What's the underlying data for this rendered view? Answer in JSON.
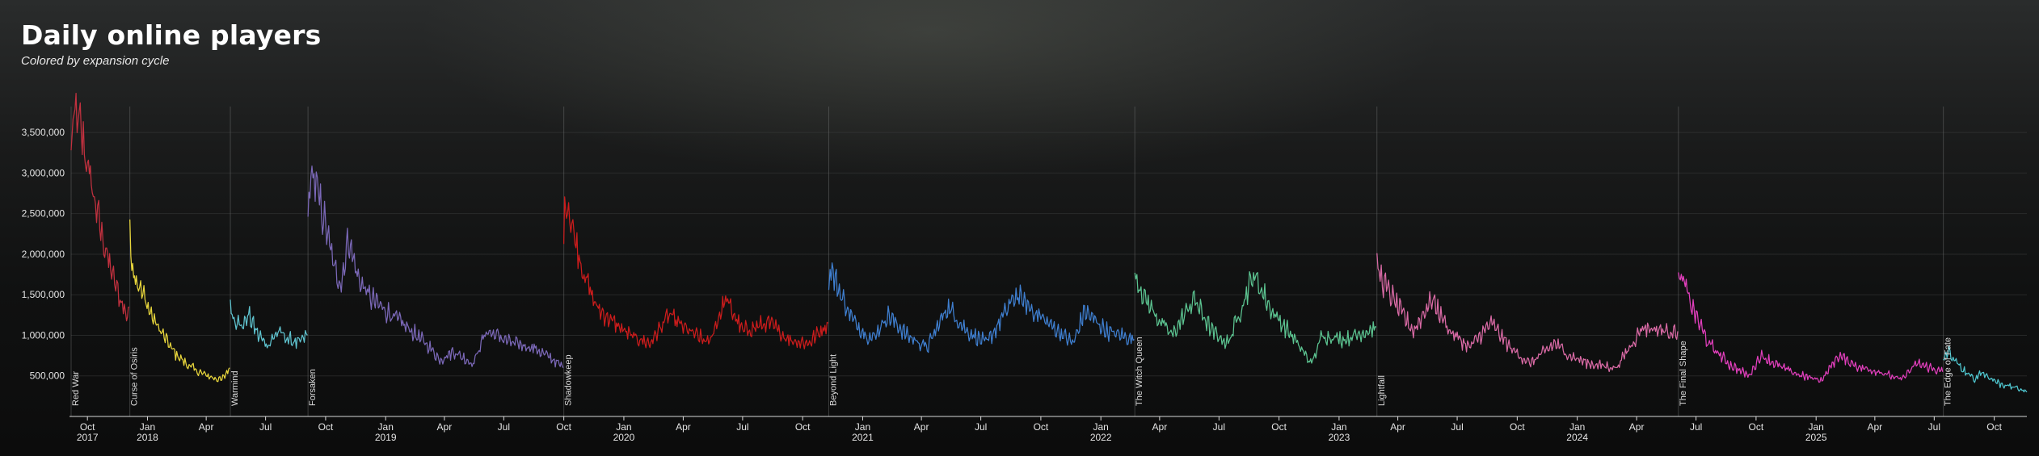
{
  "header": {
    "title": "Daily online players",
    "subtitle": "Colored by expansion cycle"
  },
  "chart_data": {
    "type": "line",
    "title": "Daily online players",
    "subtitle": "Colored by expansion cycle",
    "xlabel": "",
    "ylabel": "",
    "ylim": [
      0,
      3800000
    ],
    "xlim": [
      "2017-09-06",
      "2025-11-20"
    ],
    "y_ticks": [
      500000,
      1000000,
      1500000,
      2000000,
      2500000,
      3000000,
      3500000
    ],
    "y_tick_labels": [
      "500,000",
      "1,000,000",
      "1,500,000",
      "2,000,000",
      "2,500,000",
      "3,000,000",
      "3,500,000"
    ],
    "x_ticks": [
      {
        "date": "2017-10-01",
        "month": "Oct",
        "year": "2017"
      },
      {
        "date": "2018-01-01",
        "month": "Jan",
        "year": "2018"
      },
      {
        "date": "2018-04-01",
        "month": "Apr",
        "year": ""
      },
      {
        "date": "2018-07-01",
        "month": "Jul",
        "year": ""
      },
      {
        "date": "2018-10-01",
        "month": "Oct",
        "year": ""
      },
      {
        "date": "2019-01-01",
        "month": "Jan",
        "year": "2019"
      },
      {
        "date": "2019-04-01",
        "month": "Apr",
        "year": ""
      },
      {
        "date": "2019-07-01",
        "month": "Jul",
        "year": ""
      },
      {
        "date": "2019-10-01",
        "month": "Oct",
        "year": ""
      },
      {
        "date": "2020-01-01",
        "month": "Jan",
        "year": "2020"
      },
      {
        "date": "2020-04-01",
        "month": "Apr",
        "year": ""
      },
      {
        "date": "2020-07-01",
        "month": "Jul",
        "year": ""
      },
      {
        "date": "2020-10-01",
        "month": "Oct",
        "year": ""
      },
      {
        "date": "2021-01-01",
        "month": "Jan",
        "year": "2021"
      },
      {
        "date": "2021-04-01",
        "month": "Apr",
        "year": ""
      },
      {
        "date": "2021-07-01",
        "month": "Jul",
        "year": ""
      },
      {
        "date": "2021-10-01",
        "month": "Oct",
        "year": ""
      },
      {
        "date": "2022-01-01",
        "month": "Jan",
        "year": "2022"
      },
      {
        "date": "2022-04-01",
        "month": "Apr",
        "year": ""
      },
      {
        "date": "2022-07-01",
        "month": "Jul",
        "year": ""
      },
      {
        "date": "2022-10-01",
        "month": "Oct",
        "year": ""
      },
      {
        "date": "2023-01-01",
        "month": "Jan",
        "year": "2023"
      },
      {
        "date": "2023-04-01",
        "month": "Apr",
        "year": ""
      },
      {
        "date": "2023-07-01",
        "month": "Jul",
        "year": ""
      },
      {
        "date": "2023-10-01",
        "month": "Oct",
        "year": ""
      },
      {
        "date": "2024-01-01",
        "month": "Jan",
        "year": "2024"
      },
      {
        "date": "2024-04-01",
        "month": "Apr",
        "year": ""
      },
      {
        "date": "2024-07-01",
        "month": "Jul",
        "year": ""
      },
      {
        "date": "2024-10-01",
        "month": "Oct",
        "year": ""
      },
      {
        "date": "2025-01-01",
        "month": "Jan",
        "year": "2025"
      },
      {
        "date": "2025-04-01",
        "month": "Apr",
        "year": ""
      },
      {
        "date": "2025-07-01",
        "month": "Jul",
        "year": ""
      },
      {
        "date": "2025-10-01",
        "month": "Oct",
        "year": ""
      }
    ],
    "grid": true,
    "legend": "none",
    "series": [
      {
        "name": "Red War",
        "color": "#c2313f",
        "points": [
          [
            "2017-09-06",
            3300000
          ],
          [
            "2017-09-12",
            3750000
          ],
          [
            "2017-09-20",
            3550000
          ],
          [
            "2017-10-01",
            3100000
          ],
          [
            "2017-10-10",
            2750000
          ],
          [
            "2017-10-20",
            2350000
          ],
          [
            "2017-11-01",
            1950000
          ],
          [
            "2017-11-10",
            1700000
          ],
          [
            "2017-11-20",
            1450000
          ],
          [
            "2017-11-30",
            1250000
          ],
          [
            "2017-12-04",
            1350000
          ]
        ]
      },
      {
        "name": "Curse of Osiris",
        "color": "#e8d63c",
        "points": [
          [
            "2017-12-05",
            2300000
          ],
          [
            "2017-12-08",
            1900000
          ],
          [
            "2017-12-15",
            1700000
          ],
          [
            "2017-12-25",
            1500000
          ],
          [
            "2018-01-10",
            1200000
          ],
          [
            "2018-01-25",
            1000000
          ],
          [
            "2018-02-10",
            800000
          ],
          [
            "2018-03-01",
            650000
          ],
          [
            "2018-03-20",
            550000
          ],
          [
            "2018-04-10",
            480000
          ],
          [
            "2018-04-25",
            450000
          ],
          [
            "2018-05-07",
            600000
          ]
        ]
      },
      {
        "name": "Warmind",
        "color": "#5fc3cf",
        "points": [
          [
            "2018-05-08",
            1400000
          ],
          [
            "2018-05-12",
            1250000
          ],
          [
            "2018-05-25",
            1100000
          ],
          [
            "2018-06-05",
            1250000
          ],
          [
            "2018-06-20",
            1000000
          ],
          [
            "2018-07-05",
            880000
          ],
          [
            "2018-07-20",
            1050000
          ],
          [
            "2018-08-05",
            950000
          ],
          [
            "2018-08-20",
            900000
          ],
          [
            "2018-09-03",
            1000000
          ]
        ]
      },
      {
        "name": "Forsaken",
        "color": "#7b68b8",
        "points": [
          [
            "2018-09-04",
            2500000
          ],
          [
            "2018-09-10",
            3050000
          ],
          [
            "2018-09-20",
            2700000
          ],
          [
            "2018-10-01",
            2350000
          ],
          [
            "2018-10-15",
            1800000
          ],
          [
            "2018-10-25",
            1650000
          ],
          [
            "2018-11-05",
            2200000
          ],
          [
            "2018-11-20",
            1700000
          ],
          [
            "2018-12-10",
            1450000
          ],
          [
            "2019-01-10",
            1250000
          ],
          [
            "2019-02-10",
            1050000
          ],
          [
            "2019-03-10",
            850000
          ],
          [
            "2019-03-25",
            700000
          ],
          [
            "2019-04-15",
            800000
          ],
          [
            "2019-05-15",
            650000
          ],
          [
            "2019-06-04",
            1050000
          ],
          [
            "2019-06-20",
            1000000
          ],
          [
            "2019-07-15",
            900000
          ],
          [
            "2019-08-15",
            850000
          ],
          [
            "2019-09-15",
            700000
          ],
          [
            "2019-09-30",
            600000
          ]
        ]
      },
      {
        "name": "Shadowkeep",
        "color": "#cc1c1c",
        "points": [
          [
            "2019-10-01",
            2350000
          ],
          [
            "2019-10-05",
            2700000
          ],
          [
            "2019-10-15",
            2300000
          ],
          [
            "2019-11-01",
            1750000
          ],
          [
            "2019-11-20",
            1350000
          ],
          [
            "2019-12-10",
            1200000
          ],
          [
            "2020-01-10",
            1000000
          ],
          [
            "2020-02-10",
            900000
          ],
          [
            "2020-03-10",
            1250000
          ],
          [
            "2020-04-01",
            1100000
          ],
          [
            "2020-05-10",
            900000
          ],
          [
            "2020-06-05",
            1450000
          ],
          [
            "2020-07-01",
            1050000
          ],
          [
            "2020-08-10",
            1150000
          ],
          [
            "2020-09-10",
            950000
          ],
          [
            "2020-10-10",
            900000
          ],
          [
            "2020-11-09",
            1150000
          ]
        ]
      },
      {
        "name": "Beyond Light",
        "color": "#3f7fd0",
        "points": [
          [
            "2020-11-10",
            1600000
          ],
          [
            "2020-11-12",
            1850000
          ],
          [
            "2020-12-01",
            1450000
          ],
          [
            "2020-12-20",
            1150000
          ],
          [
            "2021-01-15",
            950000
          ],
          [
            "2021-02-09",
            1250000
          ],
          [
            "2021-03-10",
            1000000
          ],
          [
            "2021-04-10",
            850000
          ],
          [
            "2021-05-11",
            1350000
          ],
          [
            "2021-06-10",
            1050000
          ],
          [
            "2021-07-10",
            900000
          ],
          [
            "2021-08-24",
            1500000
          ],
          [
            "2021-09-20",
            1300000
          ],
          [
            "2021-10-20",
            1100000
          ],
          [
            "2021-11-20",
            900000
          ],
          [
            "2021-12-07",
            1300000
          ],
          [
            "2022-01-10",
            1050000
          ],
          [
            "2022-02-21",
            950000
          ]
        ]
      },
      {
        "name": "The Witch Queen",
        "color": "#5cc491",
        "points": [
          [
            "2022-02-22",
            1750000
          ],
          [
            "2022-03-10",
            1450000
          ],
          [
            "2022-03-30",
            1200000
          ],
          [
            "2022-04-20",
            1000000
          ],
          [
            "2022-05-24",
            1450000
          ],
          [
            "2022-06-20",
            1050000
          ],
          [
            "2022-07-15",
            900000
          ],
          [
            "2022-08-23",
            1750000
          ],
          [
            "2022-09-20",
            1300000
          ],
          [
            "2022-10-20",
            1000000
          ],
          [
            "2022-11-20",
            650000
          ],
          [
            "2022-12-06",
            1000000
          ],
          [
            "2023-01-10",
            950000
          ],
          [
            "2023-02-27",
            1100000
          ]
        ]
      },
      {
        "name": "Lightfall",
        "color": "#d96aa5",
        "points": [
          [
            "2023-02-28",
            1850000
          ],
          [
            "2023-03-10",
            1650000
          ],
          [
            "2023-04-01",
            1350000
          ],
          [
            "2023-04-25",
            1050000
          ],
          [
            "2023-05-23",
            1450000
          ],
          [
            "2023-06-20",
            1050000
          ],
          [
            "2023-07-20",
            850000
          ],
          [
            "2023-08-22",
            1150000
          ],
          [
            "2023-09-20",
            850000
          ],
          [
            "2023-10-20",
            650000
          ],
          [
            "2023-11-28",
            900000
          ],
          [
            "2023-12-20",
            750000
          ],
          [
            "2024-01-20",
            650000
          ],
          [
            "2024-03-01",
            600000
          ],
          [
            "2024-04-10",
            1100000
          ],
          [
            "2024-05-20",
            1050000
          ],
          [
            "2024-06-03",
            1050000
          ]
        ]
      },
      {
        "name": "The Final Shape",
        "color": "#e23fbd",
        "points": [
          [
            "2024-06-04",
            1650000
          ],
          [
            "2024-06-10",
            1700000
          ],
          [
            "2024-06-25",
            1350000
          ],
          [
            "2024-07-20",
            900000
          ],
          [
            "2024-08-20",
            650000
          ],
          [
            "2024-09-20",
            500000
          ],
          [
            "2024-10-08",
            750000
          ],
          [
            "2024-11-10",
            600000
          ],
          [
            "2024-12-10",
            500000
          ],
          [
            "2025-01-10",
            450000
          ],
          [
            "2025-02-04",
            750000
          ],
          [
            "2025-03-10",
            600000
          ],
          [
            "2025-04-10",
            550000
          ],
          [
            "2025-05-10",
            450000
          ],
          [
            "2025-06-05",
            650000
          ],
          [
            "2025-07-14",
            550000
          ]
        ]
      },
      {
        "name": "The Edge of Fate",
        "color": "#4fc6cf",
        "points": [
          [
            "2025-07-15",
            700000
          ],
          [
            "2025-07-22",
            800000
          ],
          [
            "2025-08-10",
            600000
          ],
          [
            "2025-09-01",
            450000
          ],
          [
            "2025-09-10",
            550000
          ],
          [
            "2025-10-10",
            400000
          ],
          [
            "2025-11-05",
            350000
          ],
          [
            "2025-11-20",
            300000
          ]
        ]
      }
    ],
    "expansions": [
      {
        "name": "Red War",
        "start": "2017-09-06"
      },
      {
        "name": "Curse of Osiris",
        "start": "2017-12-05"
      },
      {
        "name": "Warmind",
        "start": "2018-05-08"
      },
      {
        "name": "Forsaken",
        "start": "2018-09-04"
      },
      {
        "name": "Shadowkeep",
        "start": "2019-10-01"
      },
      {
        "name": "Beyond Light",
        "start": "2020-11-10"
      },
      {
        "name": "The Witch Queen",
        "start": "2022-02-22"
      },
      {
        "name": "Lightfall",
        "start": "2023-02-28"
      },
      {
        "name": "The Final Shape",
        "start": "2024-06-04"
      },
      {
        "name": "The Edge of Fate",
        "start": "2025-07-15"
      }
    ]
  }
}
